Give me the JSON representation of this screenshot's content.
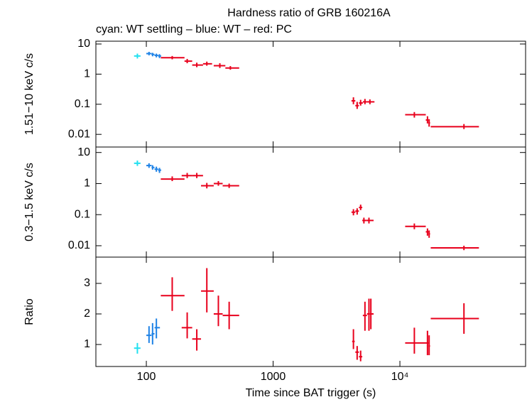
{
  "chart_data": [
    {
      "type": "errorbar",
      "title": "Hardness ratio of GRB 160216A",
      "subtitle": "cyan: WT settling – blue: WT – red: PC",
      "ylabel": "1.51−10 keV c/s",
      "log_x": true,
      "log_y": true,
      "xtick_labels": false,
      "xlim": [
        40,
        98000
      ],
      "xticks": [
        100,
        1000,
        {
          "value": 10000,
          "label": "10⁴"
        }
      ],
      "ylim": [
        0.0038,
        12.4
      ],
      "yticks": [
        10,
        1,
        0.1,
        0.01
      ],
      "series": [
        {
          "color": "#22e0f0",
          "x": [
            85
          ],
          "x_err": [
            [
              80,
              90
            ]
          ],
          "values": [
            4
          ],
          "y_err": [
            [
              3.3,
              4.8
            ]
          ]
        },
        {
          "color": "#1e82e6",
          "x": [
            105,
            112,
            120,
            127
          ],
          "x_err": [
            [
              100,
              110
            ],
            [
              110,
              116
            ],
            [
              116,
              124
            ],
            [
              124,
              131
            ]
          ],
          "values": [
            4.8,
            4.5,
            4.2,
            4.0
          ],
          "y_err": [
            [
              4.2,
              5.5
            ],
            [
              3.9,
              5.1
            ],
            [
              3.6,
              4.8
            ],
            [
              3.4,
              4.6
            ]
          ]
        },
        {
          "color": "#e8001c",
          "x": [
            160,
            210,
            250,
            300,
            380,
            460,
            4300,
            4600,
            4900,
            5300,
            5800,
            13000,
            16500,
            17000,
            32000
          ],
          "x_err": [
            [
              130,
              200
            ],
            [
              200,
              230
            ],
            [
              230,
              280
            ],
            [
              280,
              330
            ],
            [
              340,
              420
            ],
            [
              420,
              540
            ],
            [
              4150,
              4450
            ],
            [
              4450,
              4750
            ],
            [
              4750,
              5100
            ],
            [
              5100,
              5500
            ],
            [
              5500,
              6300
            ],
            [
              11000,
              16000
            ],
            [
              16000,
              16800
            ],
            [
              16800,
              17300
            ],
            [
              17500,
              42000
            ]
          ],
          "values": [
            3.5,
            2.7,
            2.0,
            2.2,
            1.9,
            1.6,
            0.13,
            0.09,
            0.11,
            0.12,
            0.12,
            0.045,
            0.03,
            0.024,
            0.018
          ],
          "y_err": [
            [
              3.1,
              4.0
            ],
            [
              2.3,
              3.2
            ],
            [
              1.7,
              2.4
            ],
            [
              1.9,
              2.6
            ],
            [
              1.6,
              2.3
            ],
            [
              1.4,
              1.85
            ],
            [
              0.1,
              0.17
            ],
            [
              0.07,
              0.12
            ],
            [
              0.09,
              0.14
            ],
            [
              0.1,
              0.15
            ],
            [
              0.1,
              0.145
            ],
            [
              0.036,
              0.055
            ],
            [
              0.023,
              0.04
            ],
            [
              0.018,
              0.032
            ],
            [
              0.015,
              0.022
            ]
          ]
        }
      ]
    },
    {
      "type": "errorbar",
      "ylabel": "0.3−1.5 keV c/s",
      "log_x": true,
      "log_y": true,
      "xtick_labels": false,
      "xlim": [
        40,
        98000
      ],
      "xticks": [
        100,
        1000,
        {
          "value": 10000,
          "label": "10⁴"
        }
      ],
      "ylim": [
        0.0043,
        15
      ],
      "yticks": [
        10,
        1,
        0.1,
        0.01
      ],
      "series": [
        {
          "color": "#22e0f0",
          "x": [
            85
          ],
          "x_err": [
            [
              80,
              90
            ]
          ],
          "values": [
            4.5
          ],
          "y_err": [
            [
              3.7,
              5.5
            ]
          ]
        },
        {
          "color": "#1e82e6",
          "x": [
            105,
            112,
            120,
            127
          ],
          "x_err": [
            [
              100,
              110
            ],
            [
              110,
              116
            ],
            [
              116,
              124
            ],
            [
              124,
              131
            ]
          ],
          "values": [
            3.8,
            3.3,
            2.9,
            2.7
          ],
          "y_err": [
            [
              3.2,
              4.5
            ],
            [
              2.8,
              3.9
            ],
            [
              2.4,
              3.5
            ],
            [
              2.2,
              3.2
            ]
          ]
        },
        {
          "color": "#e8001c",
          "x": [
            160,
            210,
            250,
            300,
            370,
            450,
            4300,
            4600,
            4900,
            5200,
            5700,
            13000,
            16500,
            17000,
            32000
          ],
          "x_err": [
            [
              130,
              200
            ],
            [
              190,
              230
            ],
            [
              230,
              280
            ],
            [
              270,
              340
            ],
            [
              340,
              400
            ],
            [
              400,
              540
            ],
            [
              4150,
              4450
            ],
            [
              4450,
              4750
            ],
            [
              4750,
              5050
            ],
            [
              5050,
              5400
            ],
            [
              5400,
              6200
            ],
            [
              11000,
              16000
            ],
            [
              16000,
              16800
            ],
            [
              16800,
              17300
            ],
            [
              17500,
              42000
            ]
          ],
          "values": [
            1.4,
            1.8,
            1.8,
            0.85,
            1.0,
            0.85,
            0.12,
            0.13,
            0.17,
            0.065,
            0.065,
            0.042,
            0.028,
            0.024,
            0.0085
          ],
          "y_err": [
            [
              1.2,
              1.7
            ],
            [
              1.5,
              2.2
            ],
            [
              1.5,
              2.2
            ],
            [
              0.7,
              1.05
            ],
            [
              0.85,
              1.2
            ],
            [
              0.72,
              1.0
            ],
            [
              0.095,
              0.15
            ],
            [
              0.1,
              0.16
            ],
            [
              0.14,
              0.21
            ],
            [
              0.052,
              0.08
            ],
            [
              0.052,
              0.08
            ],
            [
              0.034,
              0.052
            ],
            [
              0.021,
              0.036
            ],
            [
              0.018,
              0.031
            ],
            [
              0.0072,
              0.01
            ]
          ]
        }
      ]
    },
    {
      "type": "errorbar",
      "ylabel": "Ratio",
      "xlabel": "Time since BAT trigger (s)",
      "log_x": true,
      "log_y": false,
      "xtick_labels": true,
      "xlim": [
        40,
        98000
      ],
      "xticks": [
        100,
        1000,
        {
          "value": 10000,
          "label": "10⁴"
        }
      ],
      "ylim": [
        0.28,
        3.86
      ],
      "yticks": [
        1,
        2,
        3
      ],
      "series": [
        {
          "color": "#22e0f0",
          "x": [
            85
          ],
          "x_err": [
            [
              80,
              90
            ]
          ],
          "values": [
            0.88
          ],
          "y_err": [
            [
              0.7,
              1.05
            ]
          ]
        },
        {
          "color": "#1e82e6",
          "x": [
            105,
            112,
            120
          ],
          "x_err": [
            [
              100,
              110
            ],
            [
              110,
              116
            ],
            [
              116,
              128
            ]
          ],
          "values": [
            1.3,
            1.35,
            1.55
          ],
          "y_err": [
            [
              1.05,
              1.6
            ],
            [
              1.0,
              1.7
            ],
            [
              1.2,
              1.85
            ]
          ]
        },
        {
          "color": "#e8001c",
          "x": [
            160,
            210,
            250,
            300,
            370,
            450,
            4300,
            4600,
            4900,
            5300,
            5700,
            5900,
            13000,
            16500,
            17000,
            32000
          ],
          "x_err": [
            [
              130,
              200
            ],
            [
              190,
              230
            ],
            [
              230,
              270
            ],
            [
              270,
              340
            ],
            [
              340,
              400
            ],
            [
              400,
              540
            ],
            [
              4200,
              4400
            ],
            [
              4450,
              4750
            ],
            [
              4750,
              5050
            ],
            [
              5100,
              5500
            ],
            [
              5500,
              5800
            ],
            [
              5800,
              6200
            ],
            [
              11000,
              16000
            ],
            [
              16000,
              16800
            ],
            [
              16800,
              17300
            ],
            [
              17500,
              42000
            ]
          ],
          "values": [
            2.6,
            1.55,
            1.18,
            2.75,
            2.0,
            1.95,
            1.1,
            0.75,
            0.6,
            1.95,
            2.0,
            2.0,
            1.05,
            1.05,
            0.95,
            1.85
          ],
          "y_err": [
            [
              2.1,
              3.2
            ],
            [
              1.2,
              2.05
            ],
            [
              0.8,
              1.5
            ],
            [
              2.05,
              3.5
            ],
            [
              1.6,
              2.6
            ],
            [
              1.5,
              2.4
            ],
            [
              0.85,
              1.5
            ],
            [
              0.5,
              0.95
            ],
            [
              0.45,
              0.8
            ],
            [
              1.45,
              2.4
            ],
            [
              1.45,
              2.5
            ],
            [
              1.5,
              2.5
            ],
            [
              0.7,
              1.55
            ],
            [
              0.65,
              1.45
            ],
            [
              0.65,
              1.3
            ],
            [
              1.35,
              2.35
            ]
          ]
        }
      ]
    }
  ]
}
